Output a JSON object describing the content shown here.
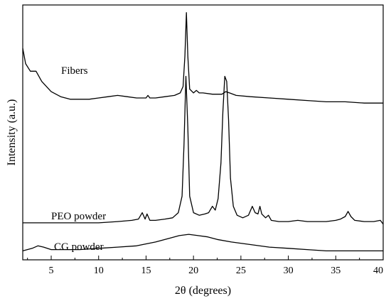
{
  "chart_data": {
    "type": "line",
    "title": "",
    "xlabel": "2θ (degrees)",
    "ylabel": "Intensity (a.u.)",
    "xlim": [
      2,
      40
    ],
    "x_ticks": [
      5,
      10,
      15,
      20,
      25,
      30,
      35,
      40
    ],
    "y_ticks_shown": false,
    "grid": false,
    "legend": "inline labels",
    "series": [
      {
        "name": "Fibers",
        "color": "#000000",
        "points": [
          [
            2.0,
            0.83
          ],
          [
            2.3,
            0.77
          ],
          [
            2.8,
            0.74
          ],
          [
            3.4,
            0.74
          ],
          [
            4.0,
            0.7
          ],
          [
            5.0,
            0.66
          ],
          [
            6.0,
            0.64
          ],
          [
            7.0,
            0.63
          ],
          [
            8.0,
            0.63
          ],
          [
            9.0,
            0.63
          ],
          [
            10.0,
            0.635
          ],
          [
            11.0,
            0.64
          ],
          [
            12.0,
            0.645
          ],
          [
            13.0,
            0.64
          ],
          [
            14.0,
            0.635
          ],
          [
            15.0,
            0.635
          ],
          [
            15.2,
            0.645
          ],
          [
            15.4,
            0.635
          ],
          [
            16.0,
            0.635
          ],
          [
            17.0,
            0.64
          ],
          [
            18.0,
            0.645
          ],
          [
            18.6,
            0.655
          ],
          [
            18.9,
            0.68
          ],
          [
            19.1,
            0.8
          ],
          [
            19.25,
            0.97
          ],
          [
            19.4,
            0.8
          ],
          [
            19.6,
            0.67
          ],
          [
            20.0,
            0.655
          ],
          [
            20.3,
            0.665
          ],
          [
            20.6,
            0.655
          ],
          [
            21.0,
            0.655
          ],
          [
            22.0,
            0.65
          ],
          [
            23.0,
            0.65
          ],
          [
            23.4,
            0.66
          ],
          [
            23.8,
            0.655
          ],
          [
            24.5,
            0.645
          ],
          [
            26.0,
            0.64
          ],
          [
            28.0,
            0.635
          ],
          [
            30.0,
            0.63
          ],
          [
            32.0,
            0.625
          ],
          [
            34.0,
            0.62
          ],
          [
            36.0,
            0.62
          ],
          [
            38.0,
            0.615
          ],
          [
            40.0,
            0.615
          ]
        ]
      },
      {
        "name": "PEO powder",
        "color": "#000000",
        "points": [
          [
            2.0,
            0.145
          ],
          [
            4.0,
            0.145
          ],
          [
            6.0,
            0.145
          ],
          [
            8.0,
            0.145
          ],
          [
            10.0,
            0.145
          ],
          [
            12.0,
            0.15
          ],
          [
            13.5,
            0.155
          ],
          [
            14.2,
            0.16
          ],
          [
            14.6,
            0.185
          ],
          [
            14.9,
            0.16
          ],
          [
            15.1,
            0.18
          ],
          [
            15.4,
            0.155
          ],
          [
            16.0,
            0.155
          ],
          [
            17.0,
            0.16
          ],
          [
            17.8,
            0.165
          ],
          [
            18.4,
            0.185
          ],
          [
            18.8,
            0.25
          ],
          [
            19.0,
            0.45
          ],
          [
            19.2,
            0.72
          ],
          [
            19.4,
            0.52
          ],
          [
            19.6,
            0.25
          ],
          [
            20.0,
            0.185
          ],
          [
            20.6,
            0.175
          ],
          [
            21.2,
            0.18
          ],
          [
            21.6,
            0.185
          ],
          [
            22.0,
            0.21
          ],
          [
            22.3,
            0.195
          ],
          [
            22.6,
            0.24
          ],
          [
            22.9,
            0.38
          ],
          [
            23.1,
            0.58
          ],
          [
            23.3,
            0.72
          ],
          [
            23.5,
            0.7
          ],
          [
            23.7,
            0.55
          ],
          [
            23.9,
            0.32
          ],
          [
            24.2,
            0.21
          ],
          [
            24.6,
            0.175
          ],
          [
            25.2,
            0.165
          ],
          [
            25.8,
            0.175
          ],
          [
            26.2,
            0.21
          ],
          [
            26.5,
            0.185
          ],
          [
            26.8,
            0.18
          ],
          [
            27.0,
            0.21
          ],
          [
            27.2,
            0.18
          ],
          [
            27.6,
            0.165
          ],
          [
            27.9,
            0.175
          ],
          [
            28.2,
            0.155
          ],
          [
            29.0,
            0.15
          ],
          [
            30.0,
            0.15
          ],
          [
            31.0,
            0.155
          ],
          [
            32.0,
            0.15
          ],
          [
            33.0,
            0.15
          ],
          [
            34.0,
            0.15
          ],
          [
            35.0,
            0.155
          ],
          [
            35.5,
            0.16
          ],
          [
            36.0,
            0.17
          ],
          [
            36.3,
            0.19
          ],
          [
            36.6,
            0.17
          ],
          [
            37.0,
            0.155
          ],
          [
            38.0,
            0.15
          ],
          [
            39.0,
            0.15
          ],
          [
            39.7,
            0.155
          ],
          [
            40.0,
            0.14
          ]
        ]
      },
      {
        "name": "CG powder",
        "color": "#000000",
        "points": [
          [
            2.0,
            0.035
          ],
          [
            3.0,
            0.045
          ],
          [
            3.6,
            0.055
          ],
          [
            4.2,
            0.05
          ],
          [
            5.0,
            0.04
          ],
          [
            6.0,
            0.04
          ],
          [
            8.0,
            0.04
          ],
          [
            10.0,
            0.045
          ],
          [
            12.0,
            0.05
          ],
          [
            14.0,
            0.055
          ],
          [
            16.0,
            0.07
          ],
          [
            17.5,
            0.085
          ],
          [
            18.5,
            0.095
          ],
          [
            19.5,
            0.1
          ],
          [
            20.5,
            0.095
          ],
          [
            21.5,
            0.09
          ],
          [
            22.5,
            0.08
          ],
          [
            24.0,
            0.07
          ],
          [
            26.0,
            0.06
          ],
          [
            28.0,
            0.05
          ],
          [
            30.0,
            0.045
          ],
          [
            32.0,
            0.04
          ],
          [
            34.0,
            0.035
          ],
          [
            36.0,
            0.035
          ],
          [
            38.0,
            0.035
          ],
          [
            40.0,
            0.035
          ]
        ]
      }
    ]
  }
}
